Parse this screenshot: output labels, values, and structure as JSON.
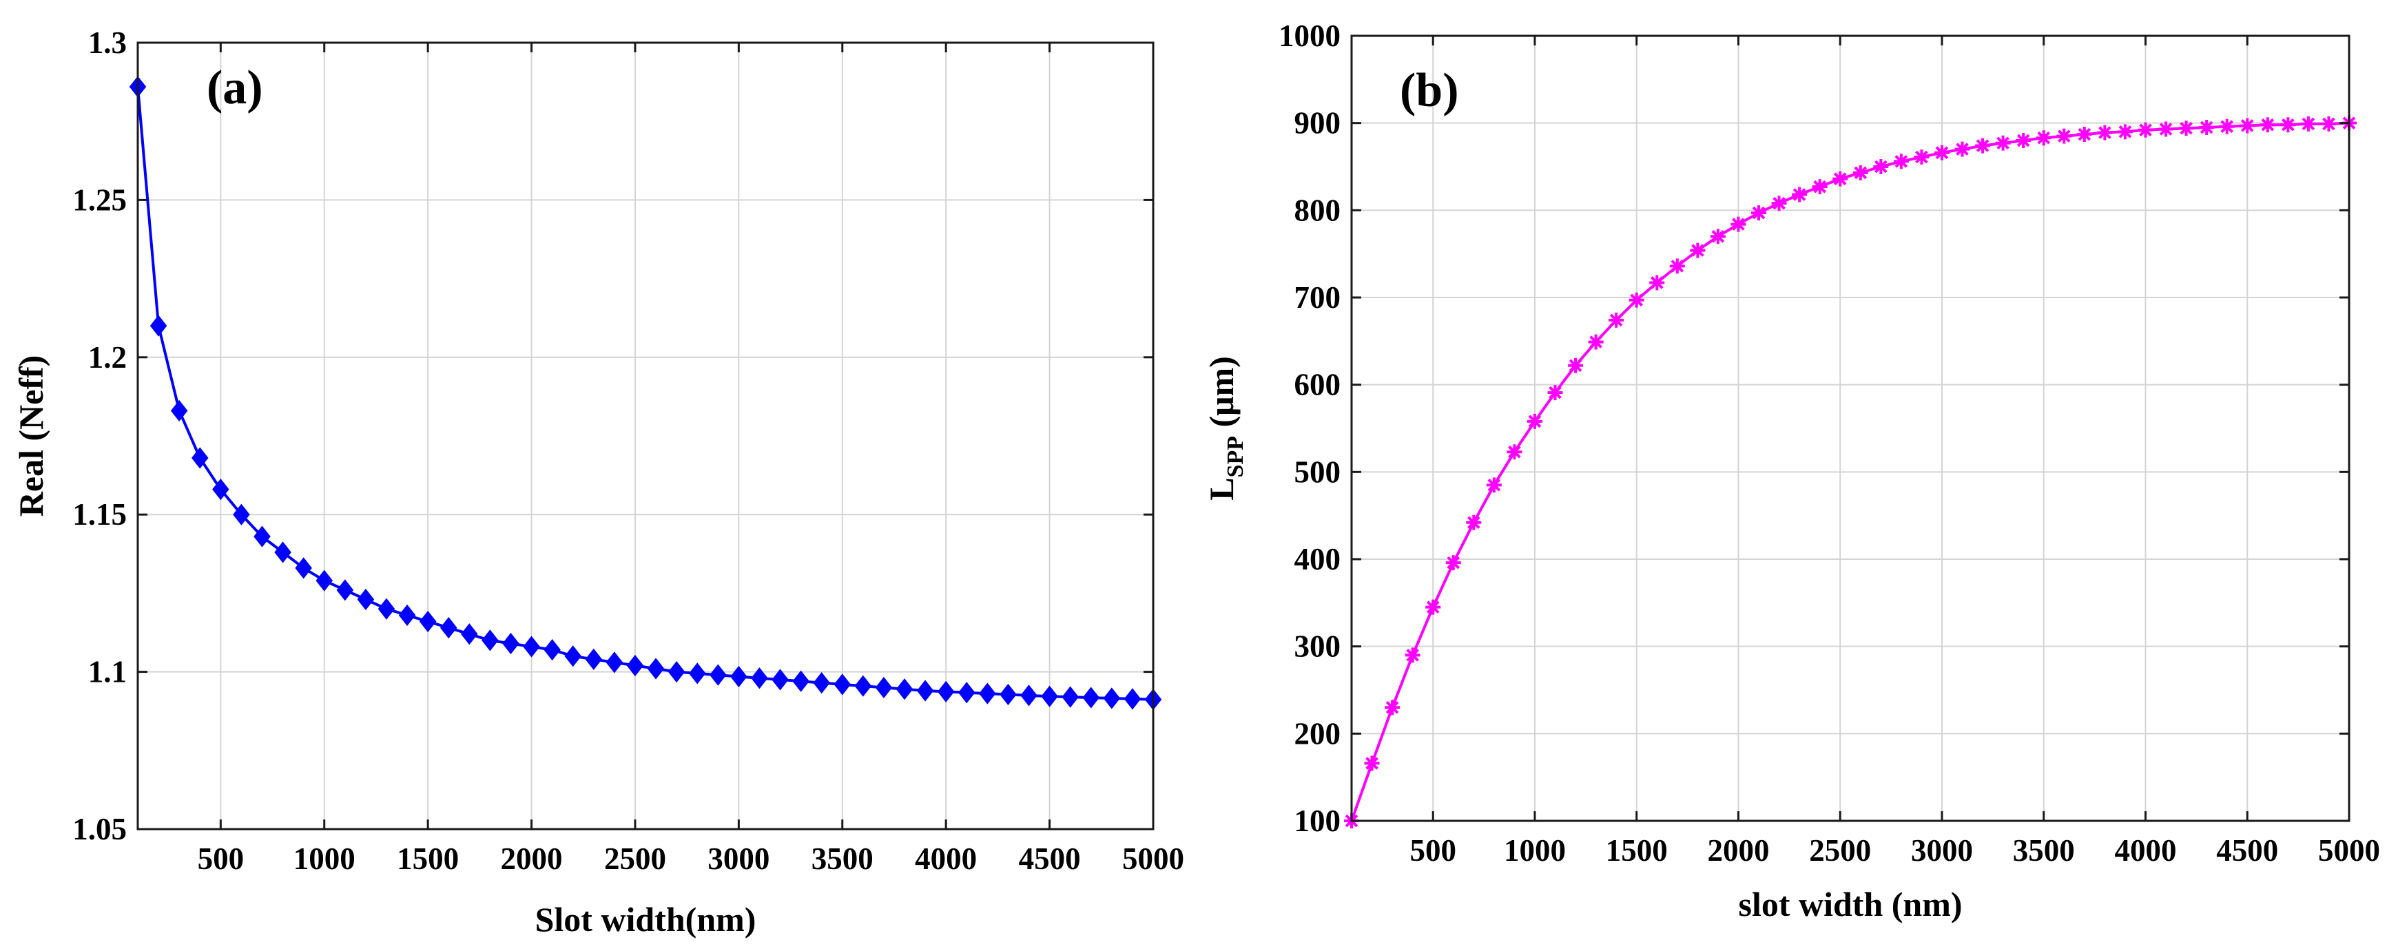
{
  "chart_data": [
    {
      "type": "line",
      "panel_label": "(a)",
      "title": "",
      "xlabel": "Slot width(nm)",
      "ylabel": "Real (Neff)",
      "xlim": [
        100,
        5000
      ],
      "ylim": [
        1.05,
        1.3
      ],
      "xticks": [
        500,
        1000,
        1500,
        2000,
        2500,
        3000,
        3500,
        4000,
        4500,
        5000
      ],
      "xtick_labels": [
        "500",
        "1000",
        "1500",
        "2000",
        "2500",
        "3000",
        "3500",
        "4000",
        "4500",
        "5000"
      ],
      "yticks": [
        1.05,
        1.1,
        1.15,
        1.2,
        1.25,
        1.3
      ],
      "ytick_labels": [
        "1.05",
        "1.1",
        "1.15",
        "1.2",
        "1.25",
        "1.3"
      ],
      "grid": true,
      "series": [
        {
          "name": "Real (Neff)",
          "color": "#0000ff",
          "marker": "diamond",
          "x": [
            100,
            200,
            300,
            400,
            500,
            600,
            700,
            800,
            900,
            1000,
            1100,
            1200,
            1300,
            1400,
            1500,
            1600,
            1700,
            1800,
            1900,
            2000,
            2100,
            2200,
            2300,
            2400,
            2500,
            2600,
            2700,
            2800,
            2900,
            3000,
            3100,
            3200,
            3300,
            3400,
            3500,
            3600,
            3700,
            3800,
            3900,
            4000,
            4100,
            4200,
            4300,
            4400,
            4500,
            4600,
            4700,
            4800,
            4900,
            5000
          ],
          "y": [
            1.286,
            1.21,
            1.183,
            1.168,
            1.158,
            1.15,
            1.143,
            1.138,
            1.133,
            1.129,
            1.126,
            1.123,
            1.12,
            1.118,
            1.116,
            1.114,
            1.112,
            1.11,
            1.109,
            1.108,
            1.107,
            1.105,
            1.104,
            1.103,
            1.102,
            1.101,
            1.1,
            1.0995,
            1.099,
            1.0985,
            1.098,
            1.0975,
            1.097,
            1.0965,
            1.096,
            1.0955,
            1.095,
            1.0945,
            1.094,
            1.0937,
            1.0934,
            1.0931,
            1.0928,
            1.0925,
            1.0922,
            1.092,
            1.0918,
            1.0916,
            1.0914,
            1.0912
          ]
        }
      ]
    },
    {
      "type": "line",
      "panel_label": "(b)",
      "title": "",
      "xlabel": "slot width (nm)",
      "ylabel_main": "L",
      "ylabel_sub": "SPP",
      "ylabel_unit": " (μm)",
      "xlim": [
        100,
        5000
      ],
      "ylim": [
        100,
        1000
      ],
      "xticks": [
        500,
        1000,
        1500,
        2000,
        2500,
        3000,
        3500,
        4000,
        4500,
        5000
      ],
      "xtick_labels": [
        "500",
        "1000",
        "1500",
        "2000",
        "2500",
        "3000",
        "3500",
        "4000",
        "4500",
        "5000"
      ],
      "yticks": [
        100,
        200,
        300,
        400,
        500,
        600,
        700,
        800,
        900,
        1000
      ],
      "ytick_labels": [
        "100",
        "200",
        "300",
        "400",
        "500",
        "600",
        "700",
        "800",
        "900",
        "1000"
      ],
      "grid": true,
      "series": [
        {
          "name": "L_SPP",
          "color": "#ff00ff",
          "marker": "asterisk",
          "x": [
            100,
            200,
            300,
            400,
            500,
            600,
            700,
            800,
            900,
            1000,
            1100,
            1200,
            1300,
            1400,
            1500,
            1600,
            1700,
            1800,
            1900,
            2000,
            2100,
            2200,
            2300,
            2400,
            2500,
            2600,
            2700,
            2800,
            2900,
            3000,
            3100,
            3200,
            3300,
            3400,
            3500,
            3600,
            3700,
            3800,
            3900,
            4000,
            4100,
            4200,
            4300,
            4400,
            4500,
            4600,
            4700,
            4800,
            4900,
            5000
          ],
          "y": [
            100,
            166,
            230,
            290,
            345,
            396,
            442,
            485,
            523,
            558,
            591,
            622,
            649,
            674,
            697,
            717,
            736,
            754,
            770,
            784,
            797,
            808,
            818,
            827,
            836,
            843,
            850,
            856,
            861,
            866,
            870,
            874,
            877,
            880,
            883,
            885,
            887,
            889,
            890,
            892,
            893,
            894,
            895,
            896,
            897,
            898,
            898,
            899,
            899,
            900
          ]
        }
      ]
    }
  ]
}
